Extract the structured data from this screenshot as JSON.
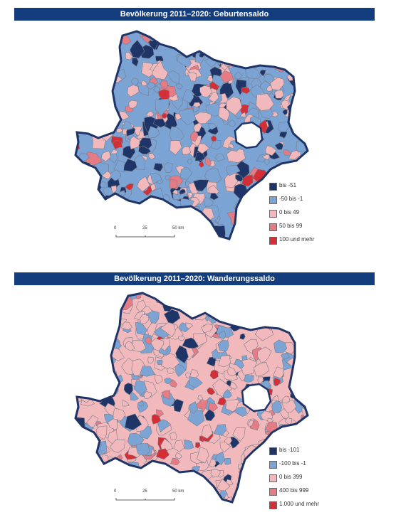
{
  "colors": {
    "header_bg": "#133d7c",
    "header_text": "#ffffff",
    "border": "#1f3568",
    "boundaries": "#7a7f8a",
    "class_1": "#1f3568",
    "class_2": "#7ba3d4",
    "class_3": "#f2b9bd",
    "class_4": "#e57b84",
    "class_5": "#d42e37"
  },
  "maps": [
    {
      "title": "Bevölkerung 2011–2020: Geburtensaldo",
      "legend": [
        "bis -51",
        "-50 bis -1",
        "0 bis 49",
        "50 bis 99",
        "100 und mehr"
      ],
      "scale": {
        "ticks": [
          "0",
          "25",
          "50 km"
        ]
      }
    },
    {
      "title": "Bevölkerung 2011–2020: Wanderungssaldo",
      "legend": [
        "bis -101",
        "-100 bis -1",
        "0 bis 399",
        "400 bis 999",
        "1.000 und mehr"
      ],
      "scale": {
        "ticks": [
          "0",
          "25",
          "50 km"
        ]
      }
    }
  ]
}
